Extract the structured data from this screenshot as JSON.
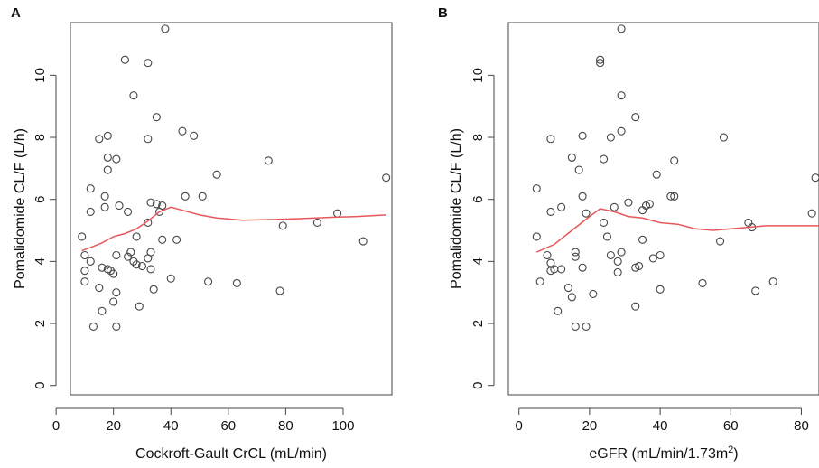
{
  "chart_data": [
    {
      "type": "scatter",
      "panel_label": "A",
      "xlabel": "Cockroft-Gault CrCL (mL/min)",
      "ylabel": "Pomalidomide CL/F (L/h)",
      "xlim": [
        5,
        117
      ],
      "ylim": [
        -0.3,
        11.7
      ],
      "xticks": [
        0,
        20,
        40,
        60,
        80,
        100
      ],
      "yticks": [
        0,
        2,
        4,
        6,
        8,
        10
      ],
      "points": [
        [
          9,
          4.8
        ],
        [
          10,
          4.2
        ],
        [
          10,
          3.7
        ],
        [
          10,
          3.35
        ],
        [
          12,
          5.6
        ],
        [
          12,
          6.35
        ],
        [
          12,
          4.0
        ],
        [
          13,
          1.9
        ],
        [
          15,
          7.95
        ],
        [
          15,
          3.15
        ],
        [
          16,
          3.8
        ],
        [
          16,
          2.4
        ],
        [
          17,
          5.75
        ],
        [
          17,
          6.1
        ],
        [
          18,
          8.05
        ],
        [
          18,
          7.35
        ],
        [
          18,
          6.95
        ],
        [
          18,
          3.75
        ],
        [
          19,
          3.7
        ],
        [
          20,
          2.7
        ],
        [
          20,
          3.6
        ],
        [
          21,
          4.2
        ],
        [
          21,
          3.0
        ],
        [
          21,
          7.3
        ],
        [
          21,
          1.9
        ],
        [
          22,
          5.8
        ],
        [
          24,
          10.5
        ],
        [
          25,
          5.6
        ],
        [
          25,
          4.15
        ],
        [
          26,
          4.3
        ],
        [
          27,
          4.0
        ],
        [
          27,
          9.35
        ],
        [
          28,
          3.9
        ],
        [
          28,
          4.8
        ],
        [
          29,
          2.55
        ],
        [
          30,
          3.85
        ],
        [
          32,
          4.1
        ],
        [
          32,
          7.95
        ],
        [
          32,
          10.4
        ],
        [
          32,
          5.25
        ],
        [
          33,
          5.9
        ],
        [
          33,
          4.3
        ],
        [
          33,
          3.75
        ],
        [
          34,
          3.1
        ],
        [
          35,
          8.65
        ],
        [
          35,
          5.85
        ],
        [
          36,
          5.6
        ],
        [
          37,
          5.8
        ],
        [
          37,
          4.7
        ],
        [
          38,
          11.5
        ],
        [
          40,
          3.45
        ],
        [
          42,
          4.7
        ],
        [
          44,
          8.2
        ],
        [
          45,
          6.1
        ],
        [
          48,
          8.05
        ],
        [
          51,
          6.1
        ],
        [
          53,
          3.35
        ],
        [
          56,
          6.8
        ],
        [
          63,
          3.3
        ],
        [
          74,
          7.25
        ],
        [
          78,
          3.05
        ],
        [
          79,
          5.15
        ],
        [
          91,
          5.25
        ],
        [
          98,
          5.55
        ],
        [
          107,
          4.65
        ],
        [
          115,
          6.7
        ]
      ],
      "smooth": [
        [
          9,
          4.35
        ],
        [
          12,
          4.45
        ],
        [
          16,
          4.6
        ],
        [
          20,
          4.8
        ],
        [
          24,
          4.9
        ],
        [
          28,
          5.05
        ],
        [
          32,
          5.3
        ],
        [
          36,
          5.6
        ],
        [
          40,
          5.75
        ],
        [
          44,
          5.65
        ],
        [
          50,
          5.5
        ],
        [
          56,
          5.4
        ],
        [
          65,
          5.33
        ],
        [
          75,
          5.35
        ],
        [
          85,
          5.38
        ],
        [
          95,
          5.42
        ],
        [
          105,
          5.45
        ],
        [
          115,
          5.5
        ]
      ]
    },
    {
      "type": "scatter",
      "panel_label": "B",
      "xlabel": "eGFR (mL/min/1.73m",
      "xlabel_sup": "2",
      "xlabel_end": ")",
      "ylabel": "Pomalidomide CL/F (L/h)",
      "xlim": [
        -3,
        85
      ],
      "ylim": [
        -0.3,
        11.7
      ],
      "xticks": [
        0,
        20,
        40,
        60,
        80
      ],
      "yticks": [
        0,
        2,
        4,
        6,
        8,
        10
      ],
      "points": [
        [
          5,
          6.35
        ],
        [
          5,
          4.8
        ],
        [
          6,
          3.35
        ],
        [
          8,
          4.2
        ],
        [
          9,
          3.95
        ],
        [
          9,
          7.95
        ],
        [
          9,
          5.6
        ],
        [
          9,
          3.7
        ],
        [
          10,
          3.75
        ],
        [
          11,
          2.4
        ],
        [
          12,
          3.75
        ],
        [
          12,
          5.75
        ],
        [
          14,
          3.15
        ],
        [
          15,
          7.35
        ],
        [
          15,
          2.85
        ],
        [
          16,
          1.9
        ],
        [
          16,
          4.3
        ],
        [
          16,
          4.15
        ],
        [
          17,
          6.95
        ],
        [
          18,
          8.05
        ],
        [
          18,
          6.1
        ],
        [
          18,
          3.8
        ],
        [
          19,
          1.9
        ],
        [
          19,
          5.55
        ],
        [
          21,
          2.95
        ],
        [
          23,
          10.4
        ],
        [
          23,
          10.5
        ],
        [
          24,
          7.3
        ],
        [
          24,
          5.25
        ],
        [
          25,
          4.8
        ],
        [
          26,
          8.0
        ],
        [
          26,
          4.2
        ],
        [
          27,
          5.75
        ],
        [
          28,
          4.0
        ],
        [
          28,
          3.65
        ],
        [
          29,
          11.5
        ],
        [
          29,
          9.35
        ],
        [
          29,
          8.2
        ],
        [
          29,
          4.3
        ],
        [
          31,
          5.9
        ],
        [
          33,
          8.65
        ],
        [
          33,
          3.8
        ],
        [
          34,
          3.85
        ],
        [
          33,
          2.55
        ],
        [
          35,
          5.65
        ],
        [
          35,
          4.7
        ],
        [
          36,
          5.8
        ],
        [
          37,
          5.85
        ],
        [
          38,
          4.1
        ],
        [
          39,
          6.8
        ],
        [
          40,
          4.2
        ],
        [
          40,
          3.1
        ],
        [
          43,
          6.1
        ],
        [
          44,
          7.25
        ],
        [
          44,
          6.1
        ],
        [
          52,
          3.3
        ],
        [
          57,
          4.65
        ],
        [
          58,
          8.0
        ],
        [
          65,
          5.25
        ],
        [
          66,
          5.1
        ],
        [
          67,
          3.05
        ],
        [
          72,
          3.35
        ],
        [
          83,
          5.55
        ],
        [
          84,
          6.7
        ]
      ],
      "smooth": [
        [
          5,
          4.3
        ],
        [
          10,
          4.55
        ],
        [
          15,
          5.0
        ],
        [
          20,
          5.45
        ],
        [
          23,
          5.7
        ],
        [
          27,
          5.6
        ],
        [
          31,
          5.45
        ],
        [
          35,
          5.4
        ],
        [
          40,
          5.25
        ],
        [
          45,
          5.2
        ],
        [
          50,
          5.05
        ],
        [
          55,
          5.0
        ],
        [
          60,
          5.05
        ],
        [
          65,
          5.1
        ],
        [
          70,
          5.15
        ],
        [
          75,
          5.15
        ],
        [
          80,
          5.15
        ],
        [
          85,
          5.15
        ]
      ]
    }
  ]
}
